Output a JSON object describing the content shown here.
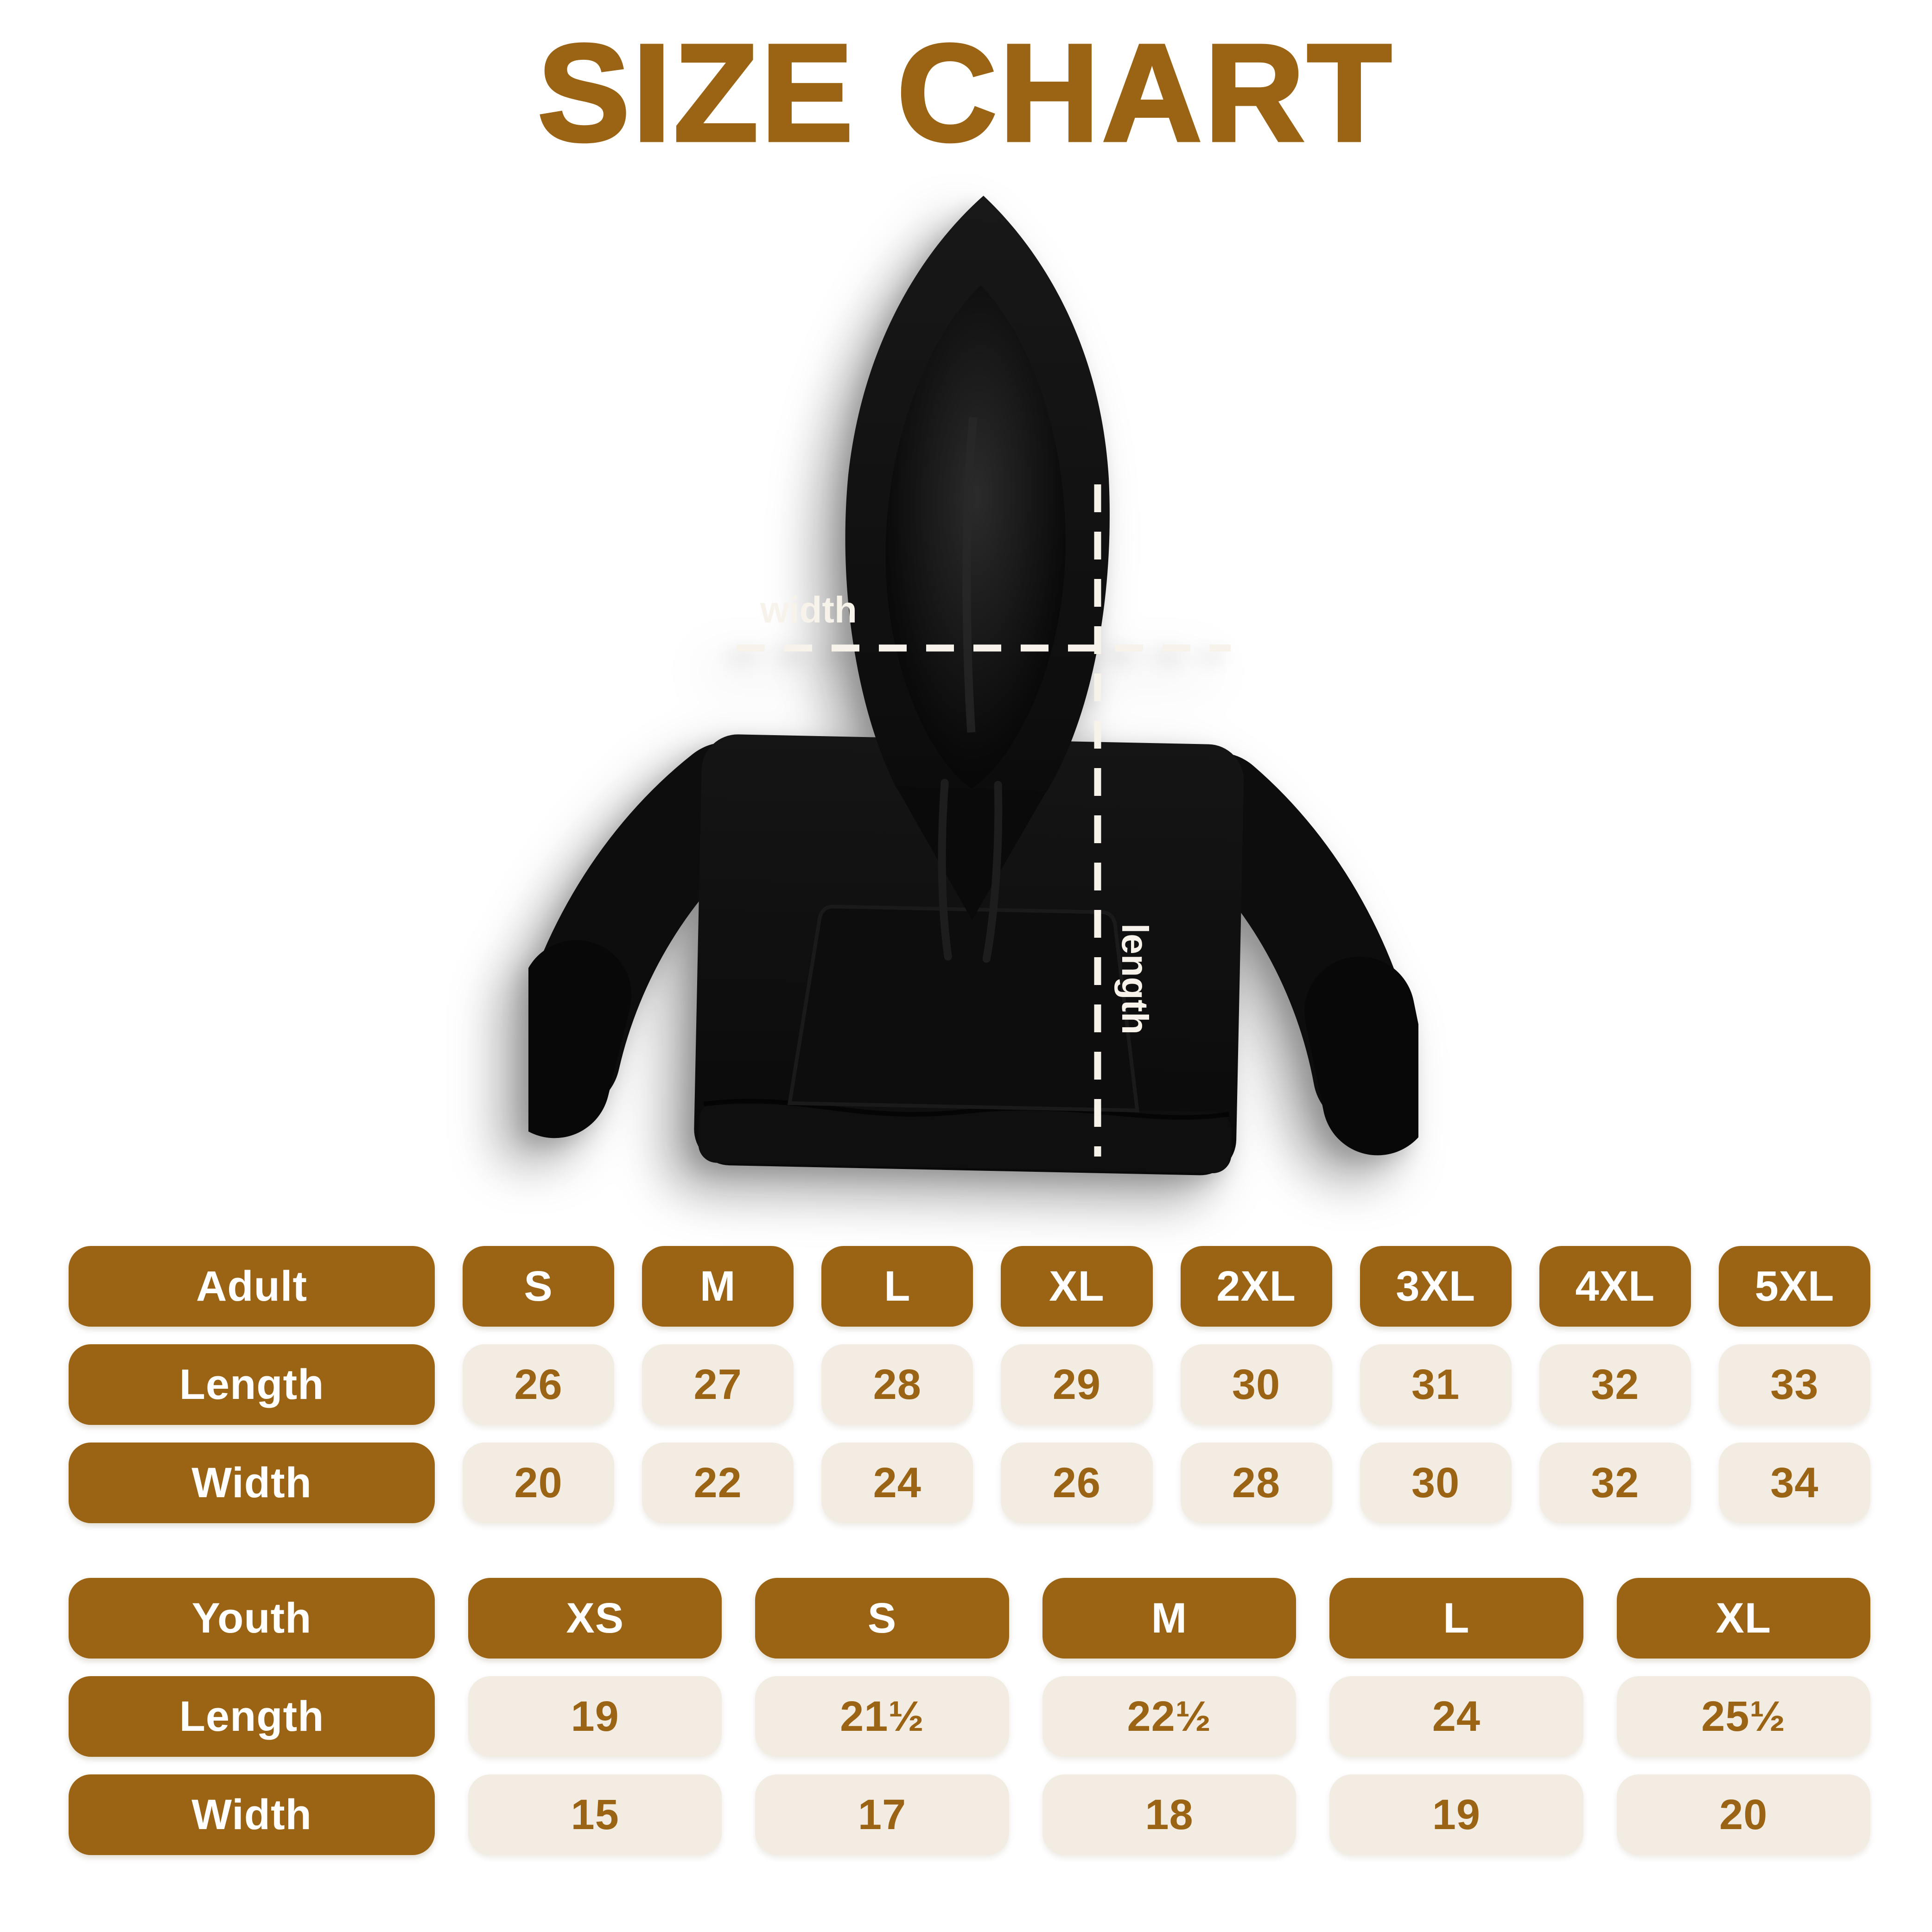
{
  "page_title": "SIZE CHART",
  "colors": {
    "title_brown": "#9C6413",
    "brand_brown": "#9A6414",
    "pill_cream": "#F2ECE3",
    "measure_line_white": "#F7F3EB",
    "hoodie_black": "#0B0B0B",
    "background": "#FFFFFF"
  },
  "diagram": {
    "garment": "black pullover hoodie",
    "width_label": "width",
    "length_label": "length"
  },
  "adult_table": {
    "header": [
      "Adult",
      "S",
      "M",
      "L",
      "XL",
      "2XL",
      "3XL",
      "4XL",
      "5XL"
    ],
    "rows": [
      {
        "label": "Length",
        "values": [
          "26",
          "27",
          "28",
          "29",
          "30",
          "31",
          "32",
          "33"
        ]
      },
      {
        "label": "Width",
        "values": [
          "20",
          "22",
          "24",
          "26",
          "28",
          "30",
          "32",
          "34"
        ]
      }
    ]
  },
  "youth_table": {
    "header": [
      "Youth",
      "XS",
      "S",
      "M",
      "L",
      "XL"
    ],
    "rows": [
      {
        "label": "Length",
        "values": [
          "19",
          "21½",
          "22½",
          "24",
          "25½"
        ]
      },
      {
        "label": "Width",
        "values": [
          "15",
          "17",
          "18",
          "19",
          "20"
        ]
      }
    ]
  }
}
